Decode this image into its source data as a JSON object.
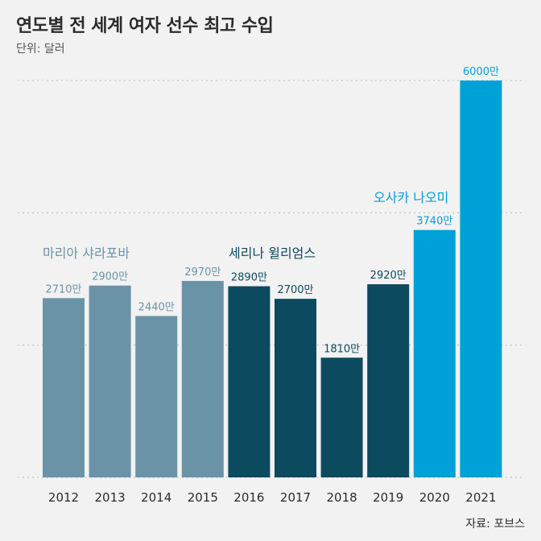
{
  "title": "연도별 전 세계 여자 선수 최고 수입",
  "unit": "단위: 달러",
  "source": "자료: 포브스",
  "colors": {
    "sharapova": "#6b93a8",
    "williams": "#0c4a60",
    "osaka": "#00a0d8",
    "grid": "#c8c8c8"
  },
  "chart_data": {
    "type": "bar",
    "title": "연도별 전 세계 여자 선수 최고 수입",
    "ylabel": "단위: 달러",
    "xlabel": "",
    "ylim": [
      0,
      6000
    ],
    "grid": true,
    "categories": [
      "2012",
      "2013",
      "2014",
      "2015",
      "2016",
      "2017",
      "2018",
      "2019",
      "2020",
      "2021"
    ],
    "values": [
      2710,
      2900,
      2440,
      2970,
      2890,
      2700,
      1810,
      2920,
      3740,
      6000
    ],
    "value_labels": [
      "2710만",
      "2900만",
      "2440만",
      "2970만",
      "2890만",
      "2700만",
      "1810만",
      "2920만",
      "3740만",
      "6000만"
    ],
    "value_unit": "만 달러",
    "athlete_index": [
      0,
      0,
      0,
      0,
      1,
      1,
      1,
      1,
      2,
      2
    ],
    "athletes": [
      {
        "name": "마리아 샤라포바",
        "color_key": "sharapova"
      },
      {
        "name": "세리나 윌리엄스",
        "color_key": "williams"
      },
      {
        "name": "오사카 나오미",
        "color_key": "osaka"
      }
    ]
  }
}
